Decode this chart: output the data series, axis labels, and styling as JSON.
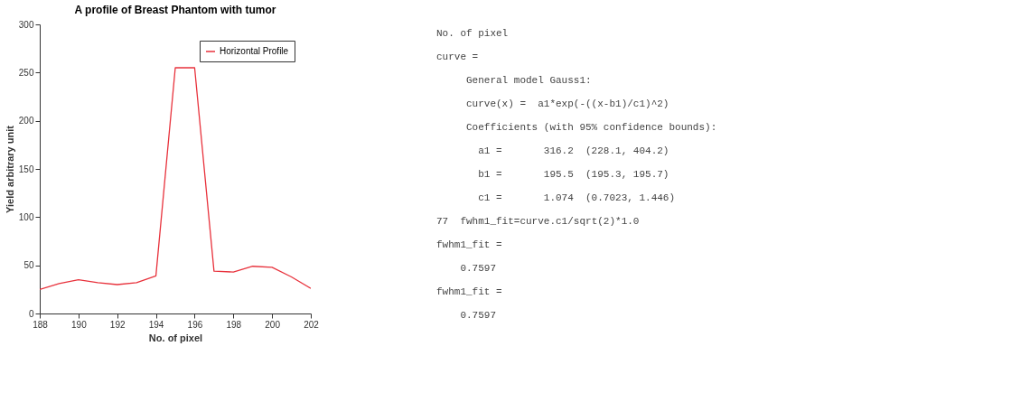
{
  "chart_data": [
    {
      "type": "line",
      "title": "A profile of Breast Phantom with tumor",
      "xlabel": "No. of pixel",
      "ylabel": "Yield arbitrary unit",
      "x": [
        188,
        189,
        190,
        191,
        192,
        193,
        194,
        195,
        196,
        197,
        198,
        199,
        200,
        201,
        202
      ],
      "series": [
        {
          "name": "Horizontal Profile",
          "color": "#e8323c",
          "values": [
            25,
            31,
            35,
            32,
            30,
            32,
            39,
            255,
            255,
            44,
            43,
            49,
            48,
            38,
            26
          ]
        }
      ],
      "xlim": [
        188,
        202
      ],
      "xticks": [
        188,
        190,
        192,
        194,
        196,
        198,
        200,
        202
      ],
      "ylim": [
        0,
        300
      ],
      "yticks": [
        0,
        50,
        100,
        150,
        200,
        250,
        300
      ],
      "grid": false,
      "legend": "top right",
      "marker": "none",
      "line_style": "solid"
    },
    {
      "type": "other",
      "annotations": [
        "No. of pixel",
        "curve =",
        "     General model Gauss1:",
        "     curve(x) =  a1*exp(-((x-b1)/c1)^2)",
        "     Coefficients (with 95% confidence bounds):",
        "       a1 =       316.2  (228.1, 404.2)",
        "       b1 =       195.5  (195.3, 195.7)",
        "       c1 =       1.074  (0.7023, 1.446)",
        "77  fwhm1_fit=curve.c1/sqrt(2)*1.0",
        "fwhm1_fit =",
        "    0.7597",
        "fwhm1_fit =",
        "    0.7597"
      ]
    }
  ]
}
